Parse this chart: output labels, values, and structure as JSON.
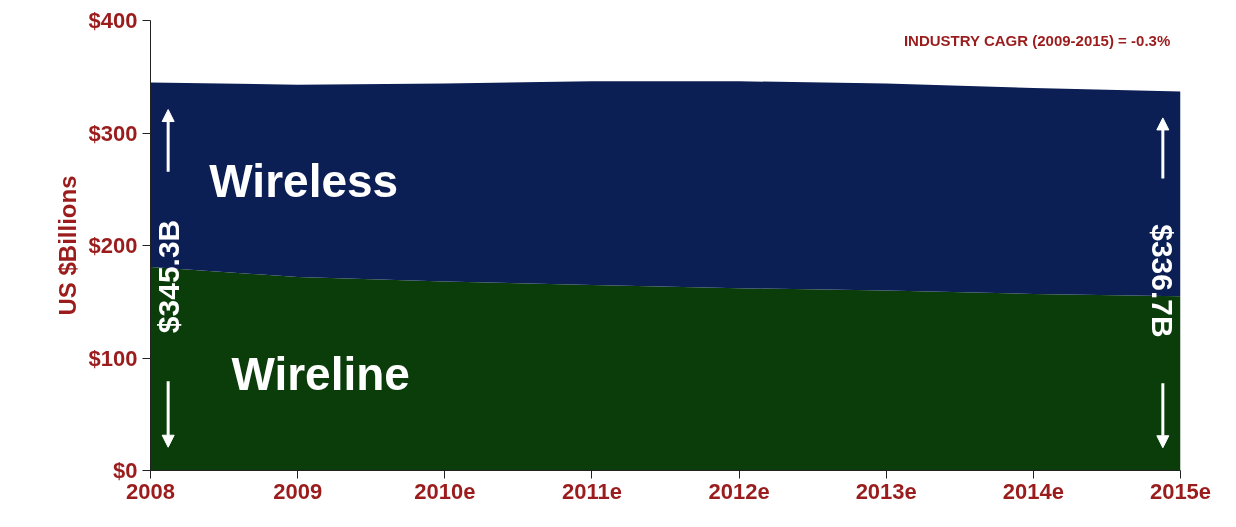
{
  "chart_data": {
    "type": "area",
    "stacked": true,
    "ylabel": "US $Billions",
    "categories": [
      "2008",
      "2009",
      "2010e",
      "2011e",
      "2012e",
      "2013e",
      "2014e",
      "2015e"
    ],
    "series": [
      {
        "name": "Wireline",
        "color": "#0b3d0b",
        "values": [
          181,
          172,
          168,
          165,
          162,
          160,
          157,
          155
        ]
      },
      {
        "name": "Wireless",
        "color": "#0b1f55",
        "values": [
          164,
          171,
          176,
          181,
          184,
          184,
          183,
          182
        ]
      }
    ],
    "ylim": [
      0,
      400
    ],
    "yticks": [
      {
        "value": 0,
        "label": "$0"
      },
      {
        "value": 100,
        "label": "$100"
      },
      {
        "value": 200,
        "label": "$200"
      },
      {
        "value": 300,
        "label": "$300"
      },
      {
        "value": 400,
        "label": "$400"
      }
    ],
    "grid": false,
    "legend": false,
    "annotations": [
      "INDUSTRY CAGR (2009-2015) = -0.3%",
      "$345.3B",
      "$336.7B"
    ]
  }
}
